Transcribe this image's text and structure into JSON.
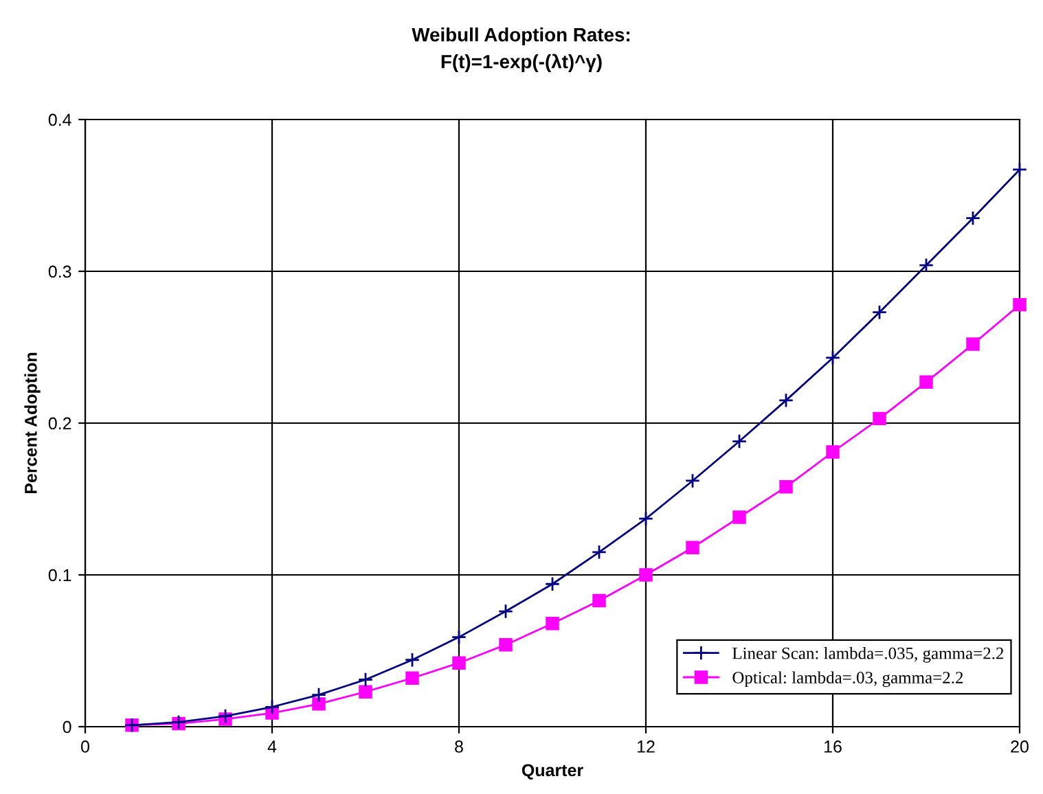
{
  "chart_data": {
    "type": "line",
    "title": "Weibull Adoption Rates:\nF(t)=1-exp(-(λt)^γ)",
    "xlabel": "Quarter",
    "ylabel": "Percent Adoption",
    "x": [
      1,
      2,
      3,
      4,
      5,
      6,
      7,
      8,
      9,
      10,
      11,
      12,
      13,
      14,
      15,
      16,
      17,
      18,
      19,
      20
    ],
    "series": [
      {
        "name": "Linear Scan: lambda=.035, gamma=2.2",
        "color": "#000080",
        "marker": "cross",
        "values": [
          0.001,
          0.003,
          0.007,
          0.013,
          0.021,
          0.031,
          0.044,
          0.059,
          0.076,
          0.094,
          0.115,
          0.137,
          0.162,
          0.188,
          0.215,
          0.243,
          0.273,
          0.304,
          0.335,
          0.367
        ]
      },
      {
        "name": "Optical: lambda=.03, gamma=2.2",
        "color": "#ff00ff",
        "marker": "square",
        "values": [
          0.001,
          0.002,
          0.005,
          0.009,
          0.015,
          0.023,
          0.032,
          0.042,
          0.054,
          0.068,
          0.083,
          0.1,
          0.118,
          0.138,
          0.158,
          0.181,
          0.203,
          0.227,
          0.252,
          0.278
        ]
      }
    ],
    "xlim": [
      0,
      20
    ],
    "ylim": [
      0,
      0.4
    ],
    "xticks": [
      0,
      4,
      8,
      12,
      16,
      20
    ],
    "yticks": [
      0,
      0.1,
      0.2,
      0.3,
      0.4
    ],
    "grid": true,
    "legend": "bottom right",
    "line_style": "solid"
  }
}
